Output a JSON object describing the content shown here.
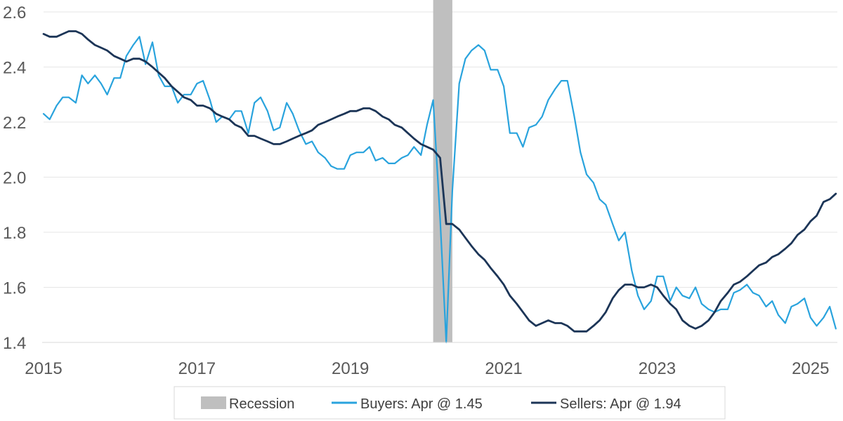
{
  "chart_data": {
    "type": "line",
    "title": "",
    "xlabel": "",
    "ylabel": "",
    "xlim": [
      2015.0,
      2025.35
    ],
    "ylim": [
      1.4,
      2.6
    ],
    "y_ticks": [
      "1.4",
      "1.6",
      "1.8",
      "2.0",
      "2.2",
      "2.4",
      "2.6"
    ],
    "x_ticks": [
      "2015",
      "2017",
      "2019",
      "2021",
      "2023",
      "2025"
    ],
    "grid": "horizontal",
    "legend_position": "bottom",
    "recession": {
      "name": "Recession",
      "start": 2020.08,
      "end": 2020.33,
      "color": "#bfbfbf"
    },
    "series": [
      {
        "name": "Buyers: Apr @ 1.45",
        "color": "#29a3dd",
        "points": [
          [
            2015.0,
            2.23
          ],
          [
            2015.08,
            2.21
          ],
          [
            2015.17,
            2.26
          ],
          [
            2015.25,
            2.29
          ],
          [
            2015.33,
            2.29
          ],
          [
            2015.42,
            2.27
          ],
          [
            2015.5,
            2.37
          ],
          [
            2015.58,
            2.34
          ],
          [
            2015.67,
            2.37
          ],
          [
            2015.75,
            2.34
          ],
          [
            2015.83,
            2.3
          ],
          [
            2015.92,
            2.36
          ],
          [
            2016.0,
            2.36
          ],
          [
            2016.08,
            2.44
          ],
          [
            2016.17,
            2.48
          ],
          [
            2016.25,
            2.51
          ],
          [
            2016.33,
            2.41
          ],
          [
            2016.42,
            2.49
          ],
          [
            2016.5,
            2.37
          ],
          [
            2016.58,
            2.33
          ],
          [
            2016.67,
            2.33
          ],
          [
            2016.75,
            2.27
          ],
          [
            2016.83,
            2.3
          ],
          [
            2016.92,
            2.3
          ],
          [
            2017.0,
            2.34
          ],
          [
            2017.08,
            2.35
          ],
          [
            2017.17,
            2.28
          ],
          [
            2017.25,
            2.2
          ],
          [
            2017.33,
            2.22
          ],
          [
            2017.42,
            2.21
          ],
          [
            2017.5,
            2.24
          ],
          [
            2017.58,
            2.24
          ],
          [
            2017.67,
            2.16
          ],
          [
            2017.75,
            2.27
          ],
          [
            2017.83,
            2.29
          ],
          [
            2017.92,
            2.24
          ],
          [
            2018.0,
            2.17
          ],
          [
            2018.08,
            2.18
          ],
          [
            2018.17,
            2.27
          ],
          [
            2018.25,
            2.23
          ],
          [
            2018.33,
            2.17
          ],
          [
            2018.42,
            2.12
          ],
          [
            2018.5,
            2.13
          ],
          [
            2018.58,
            2.09
          ],
          [
            2018.67,
            2.07
          ],
          [
            2018.75,
            2.04
          ],
          [
            2018.83,
            2.03
          ],
          [
            2018.92,
            2.03
          ],
          [
            2019.0,
            2.08
          ],
          [
            2019.08,
            2.09
          ],
          [
            2019.17,
            2.09
          ],
          [
            2019.25,
            2.11
          ],
          [
            2019.33,
            2.06
          ],
          [
            2019.42,
            2.07
          ],
          [
            2019.5,
            2.05
          ],
          [
            2019.58,
            2.05
          ],
          [
            2019.67,
            2.07
          ],
          [
            2019.75,
            2.08
          ],
          [
            2019.83,
            2.11
          ],
          [
            2019.92,
            2.08
          ],
          [
            2020.0,
            2.19
          ],
          [
            2020.08,
            2.28
          ],
          [
            2020.17,
            1.85
          ],
          [
            2020.25,
            1.4
          ],
          [
            2020.33,
            1.95
          ],
          [
            2020.42,
            2.34
          ],
          [
            2020.5,
            2.43
          ],
          [
            2020.58,
            2.46
          ],
          [
            2020.67,
            2.48
          ],
          [
            2020.75,
            2.46
          ],
          [
            2020.83,
            2.39
          ],
          [
            2020.92,
            2.39
          ],
          [
            2021.0,
            2.33
          ],
          [
            2021.08,
            2.16
          ],
          [
            2021.17,
            2.16
          ],
          [
            2021.25,
            2.11
          ],
          [
            2021.33,
            2.18
          ],
          [
            2021.42,
            2.19
          ],
          [
            2021.5,
            2.22
          ],
          [
            2021.58,
            2.28
          ],
          [
            2021.67,
            2.32
          ],
          [
            2021.75,
            2.35
          ],
          [
            2021.83,
            2.35
          ],
          [
            2021.92,
            2.22
          ],
          [
            2022.0,
            2.09
          ],
          [
            2022.08,
            2.01
          ],
          [
            2022.17,
            1.98
          ],
          [
            2022.25,
            1.92
          ],
          [
            2022.33,
            1.9
          ],
          [
            2022.42,
            1.83
          ],
          [
            2022.5,
            1.77
          ],
          [
            2022.58,
            1.8
          ],
          [
            2022.67,
            1.66
          ],
          [
            2022.75,
            1.57
          ],
          [
            2022.83,
            1.52
          ],
          [
            2022.92,
            1.55
          ],
          [
            2023.0,
            1.64
          ],
          [
            2023.08,
            1.64
          ],
          [
            2023.17,
            1.55
          ],
          [
            2023.25,
            1.6
          ],
          [
            2023.33,
            1.57
          ],
          [
            2023.42,
            1.56
          ],
          [
            2023.5,
            1.6
          ],
          [
            2023.58,
            1.54
          ],
          [
            2023.67,
            1.52
          ],
          [
            2023.75,
            1.51
          ],
          [
            2023.83,
            1.52
          ],
          [
            2023.92,
            1.52
          ],
          [
            2024.0,
            1.58
          ],
          [
            2024.08,
            1.59
          ],
          [
            2024.17,
            1.61
          ],
          [
            2024.25,
            1.58
          ],
          [
            2024.33,
            1.57
          ],
          [
            2024.42,
            1.53
          ],
          [
            2024.5,
            1.55
          ],
          [
            2024.58,
            1.5
          ],
          [
            2024.67,
            1.47
          ],
          [
            2024.75,
            1.53
          ],
          [
            2024.83,
            1.54
          ],
          [
            2024.92,
            1.56
          ],
          [
            2025.0,
            1.49
          ],
          [
            2025.08,
            1.46
          ],
          [
            2025.17,
            1.49
          ],
          [
            2025.25,
            1.53
          ],
          [
            2025.33,
            1.45
          ]
        ]
      },
      {
        "name": "Sellers: Apr @ 1.94",
        "color": "#1c3557",
        "points": [
          [
            2015.0,
            2.52
          ],
          [
            2015.08,
            2.51
          ],
          [
            2015.17,
            2.51
          ],
          [
            2015.25,
            2.52
          ],
          [
            2015.33,
            2.53
          ],
          [
            2015.42,
            2.53
          ],
          [
            2015.5,
            2.52
          ],
          [
            2015.58,
            2.5
          ],
          [
            2015.67,
            2.48
          ],
          [
            2015.75,
            2.47
          ],
          [
            2015.83,
            2.46
          ],
          [
            2015.92,
            2.44
          ],
          [
            2016.0,
            2.43
          ],
          [
            2016.08,
            2.42
          ],
          [
            2016.17,
            2.43
          ],
          [
            2016.25,
            2.43
          ],
          [
            2016.33,
            2.42
          ],
          [
            2016.42,
            2.4
          ],
          [
            2016.5,
            2.38
          ],
          [
            2016.58,
            2.36
          ],
          [
            2016.67,
            2.33
          ],
          [
            2016.75,
            2.31
          ],
          [
            2016.83,
            2.29
          ],
          [
            2016.92,
            2.28
          ],
          [
            2017.0,
            2.26
          ],
          [
            2017.08,
            2.26
          ],
          [
            2017.17,
            2.25
          ],
          [
            2017.25,
            2.23
          ],
          [
            2017.33,
            2.22
          ],
          [
            2017.42,
            2.21
          ],
          [
            2017.5,
            2.19
          ],
          [
            2017.58,
            2.18
          ],
          [
            2017.67,
            2.15
          ],
          [
            2017.75,
            2.15
          ],
          [
            2017.83,
            2.14
          ],
          [
            2017.92,
            2.13
          ],
          [
            2018.0,
            2.12
          ],
          [
            2018.08,
            2.12
          ],
          [
            2018.17,
            2.13
          ],
          [
            2018.25,
            2.14
          ],
          [
            2018.33,
            2.15
          ],
          [
            2018.42,
            2.16
          ],
          [
            2018.5,
            2.17
          ],
          [
            2018.58,
            2.19
          ],
          [
            2018.67,
            2.2
          ],
          [
            2018.75,
            2.21
          ],
          [
            2018.83,
            2.22
          ],
          [
            2018.92,
            2.23
          ],
          [
            2019.0,
            2.24
          ],
          [
            2019.08,
            2.24
          ],
          [
            2019.17,
            2.25
          ],
          [
            2019.25,
            2.25
          ],
          [
            2019.33,
            2.24
          ],
          [
            2019.42,
            2.22
          ],
          [
            2019.5,
            2.21
          ],
          [
            2019.58,
            2.19
          ],
          [
            2019.67,
            2.18
          ],
          [
            2019.75,
            2.16
          ],
          [
            2019.83,
            2.14
          ],
          [
            2019.92,
            2.12
          ],
          [
            2020.0,
            2.11
          ],
          [
            2020.08,
            2.1
          ],
          [
            2020.17,
            2.07
          ],
          [
            2020.25,
            1.83
          ],
          [
            2020.33,
            1.83
          ],
          [
            2020.42,
            1.81
          ],
          [
            2020.5,
            1.78
          ],
          [
            2020.58,
            1.75
          ],
          [
            2020.67,
            1.72
          ],
          [
            2020.75,
            1.7
          ],
          [
            2020.83,
            1.67
          ],
          [
            2020.92,
            1.64
          ],
          [
            2021.0,
            1.61
          ],
          [
            2021.08,
            1.57
          ],
          [
            2021.17,
            1.54
          ],
          [
            2021.25,
            1.51
          ],
          [
            2021.33,
            1.48
          ],
          [
            2021.42,
            1.46
          ],
          [
            2021.5,
            1.47
          ],
          [
            2021.58,
            1.48
          ],
          [
            2021.67,
            1.47
          ],
          [
            2021.75,
            1.47
          ],
          [
            2021.83,
            1.46
          ],
          [
            2021.92,
            1.44
          ],
          [
            2022.0,
            1.44
          ],
          [
            2022.08,
            1.44
          ],
          [
            2022.17,
            1.46
          ],
          [
            2022.25,
            1.48
          ],
          [
            2022.33,
            1.51
          ],
          [
            2022.42,
            1.56
          ],
          [
            2022.5,
            1.59
          ],
          [
            2022.58,
            1.61
          ],
          [
            2022.67,
            1.61
          ],
          [
            2022.75,
            1.6
          ],
          [
            2022.83,
            1.6
          ],
          [
            2022.92,
            1.61
          ],
          [
            2023.0,
            1.6
          ],
          [
            2023.08,
            1.57
          ],
          [
            2023.17,
            1.54
          ],
          [
            2023.25,
            1.52
          ],
          [
            2023.33,
            1.48
          ],
          [
            2023.42,
            1.46
          ],
          [
            2023.5,
            1.45
          ],
          [
            2023.58,
            1.46
          ],
          [
            2023.67,
            1.48
          ],
          [
            2023.75,
            1.51
          ],
          [
            2023.83,
            1.55
          ],
          [
            2023.92,
            1.58
          ],
          [
            2024.0,
            1.61
          ],
          [
            2024.08,
            1.62
          ],
          [
            2024.17,
            1.64
          ],
          [
            2024.25,
            1.66
          ],
          [
            2024.33,
            1.68
          ],
          [
            2024.42,
            1.69
          ],
          [
            2024.5,
            1.71
          ],
          [
            2024.58,
            1.72
          ],
          [
            2024.67,
            1.74
          ],
          [
            2024.75,
            1.76
          ],
          [
            2024.83,
            1.79
          ],
          [
            2024.92,
            1.81
          ],
          [
            2025.0,
            1.84
          ],
          [
            2025.08,
            1.86
          ],
          [
            2025.17,
            1.91
          ],
          [
            2025.25,
            1.92
          ],
          [
            2025.33,
            1.94
          ]
        ]
      }
    ]
  }
}
